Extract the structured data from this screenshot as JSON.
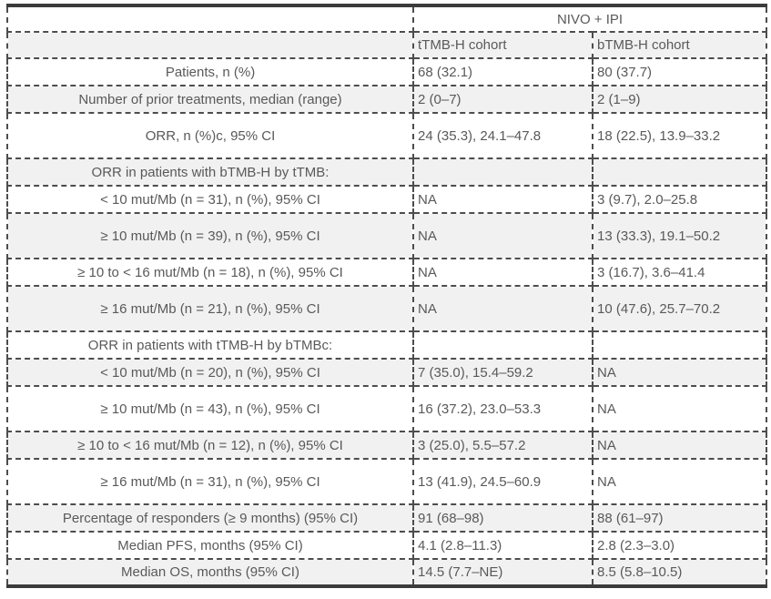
{
  "table": {
    "group_header": "NIVO + IPI",
    "columns": {
      "t": "tTMB-H cohort",
      "b": "bTMB-H cohort"
    },
    "rows": [
      {
        "label": "Patients, n (%)",
        "t": "68 (32.1)",
        "b": "80 (37.7)"
      },
      {
        "label": "Number of prior treatments, median (range)",
        "t": "2 (0–7)",
        "b": "2 (1–9)"
      },
      {
        "label": "ORR, n (%)c, 95% CI",
        "t": "24 (35.3), 24.1–47.8",
        "b": "18 (22.5), 13.9–33.2"
      },
      {
        "label": "ORR in patients with bTMB-H by tTMB:",
        "t": "",
        "b": ""
      },
      {
        "label": "< 10 mut/Mb (n = 31), n (%), 95% CI",
        "t": "NA",
        "b": "3 (9.7), 2.0–25.8"
      },
      {
        "label": "≥ 10 mut/Mb (n = 39), n (%), 95% CI",
        "t": "NA",
        "b": "13 (33.3), 19.1–50.2"
      },
      {
        "label": "≥ 10 to < 16 mut/Mb (n = 18), n (%), 95% CI",
        "t": "NA",
        "b": "3 (16.7), 3.6–41.4"
      },
      {
        "label": "≥ 16 mut/Mb (n = 21), n (%), 95% CI",
        "t": "NA",
        "b": "10 (47.6), 25.7–70.2"
      },
      {
        "label": "ORR in patients with tTMB-H by bTMBc:",
        "t": "",
        "b": ""
      },
      {
        "label": "< 10 mut/Mb (n = 20), n (%), 95% CI",
        "t": "7 (35.0), 15.4–59.2",
        "b": "NA"
      },
      {
        "label": "≥ 10 mut/Mb (n = 43), n (%), 95% CI",
        "t": "16 (37.2), 23.0–53.3",
        "b": "NA"
      },
      {
        "label": "≥ 10 to < 16 mut/Mb (n = 12), n (%), 95% CI",
        "t": "3 (25.0), 5.5–57.2",
        "b": "NA"
      },
      {
        "label": "≥ 16 mut/Mb (n = 31), n (%), 95% CI",
        "t": "13 (41.9), 24.5–60.9",
        "b": "NA"
      },
      {
        "label": "Percentage of responders (≥ 9 months) (95% CI)",
        "t": "91 (68–98)",
        "b": "88 (61–97)"
      },
      {
        "label": "Median PFS, months (95% CI)",
        "t": "4.1 (2.8–11.3)",
        "b": "2.8 (2.3–3.0)"
      },
      {
        "label": "Median OS, months (95% CI)",
        "t": "14.5 (7.7–NE)",
        "b": "8.5 (5.8–10.5)"
      }
    ],
    "colors": {
      "frame_border": "#3b3b3b",
      "cell_border": "#4d4d4d",
      "alt_row_bg": "#f1f1f1",
      "text": "#595959"
    }
  }
}
